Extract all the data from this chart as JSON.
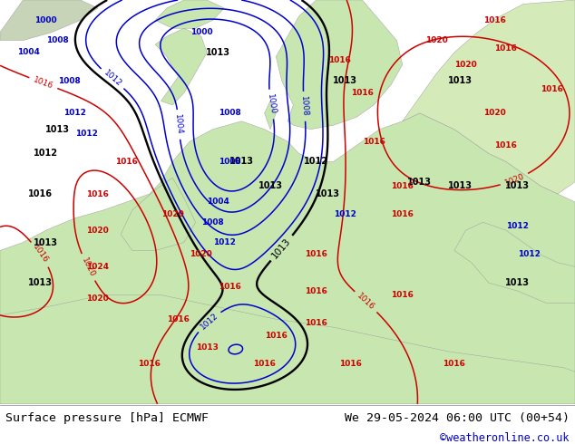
{
  "title_left": "Surface pressure [hPa] ECMWF",
  "title_right": "We 29-05-2024 06:00 UTC (00+54)",
  "copyright": "©weatheronline.co.uk",
  "bg_ocean": "#dcdcdc",
  "bg_land": "#c8e6b0",
  "bg_land2": "#d4eab8",
  "text_color_black": "#000000",
  "text_color_blue": "#0000cc",
  "text_color_red": "#cc0000",
  "contour_black": "#000000",
  "contour_blue": "#0000cc",
  "contour_red": "#cc0000",
  "footer_bg": "#ffffff",
  "footer_text_color": "#000000",
  "copyright_color": "#0000cc",
  "figsize": [
    6.34,
    4.9
  ],
  "dpi": 100
}
